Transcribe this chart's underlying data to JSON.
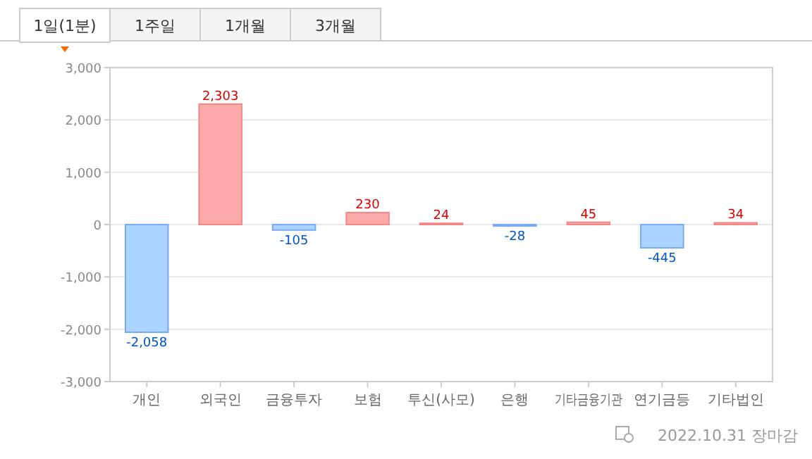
{
  "chart_data": {
    "type": "bar",
    "categories": [
      "개인",
      "외국인",
      "금융투자",
      "보험",
      "투신(사모)",
      "은행",
      "기타금융기관",
      "연기금등",
      "기타법인"
    ],
    "values": [
      -2058,
      2303,
      -105,
      230,
      24,
      -28,
      45,
      -445,
      34
    ],
    "colors": [
      "#aad4ff",
      "#ffaaaa",
      "#aad4ff",
      "#ffaaaa",
      "#ffaaaa",
      "#aad4ff",
      "#ffaaaa",
      "#aad4ff",
      "#ffaaaa"
    ],
    "ylim": [
      -3000,
      3000
    ],
    "yticks": [
      {
        "value": -3000,
        "label": "-3,000"
      },
      {
        "value": -2000,
        "label": "-2,000"
      },
      {
        "value": -1000,
        "label": "-1,000"
      },
      0,
      {
        "value": 1000,
        "label": "1,000"
      },
      {
        "value": 2000,
        "label": "2,000"
      },
      {
        "value": 3000,
        "label": "3,000"
      }
    ],
    "value_labels": [
      "-2,058",
      "2,303",
      "-105",
      "230",
      "24",
      "-28",
      "45",
      "-445",
      "34"
    ],
    "grid": "y",
    "annotations": [
      "1일(1분)",
      "1주일",
      "1개월",
      "3개월",
      "2022.10.31 장마감"
    ]
  }
}
